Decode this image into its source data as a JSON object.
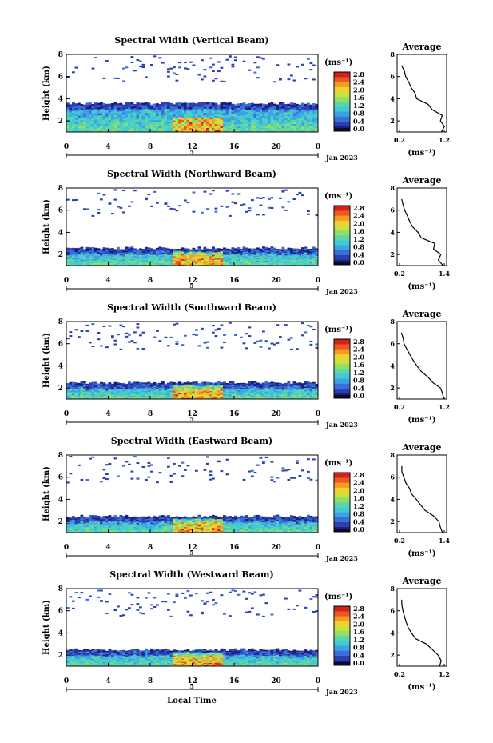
{
  "figure": {
    "xlabel": "Local Time",
    "date_label": "Jan 2023",
    "day_label": "5",
    "colorbar_unit": "(ms⁻¹)",
    "average_title": "Average",
    "average_unit": "(ms⁻¹)",
    "y_axis_label": "Height (km)",
    "colorbar_ticks": [
      "0.0",
      "0.4",
      "0.8",
      "1.2",
      "1.6",
      "2.0",
      "2.4",
      "2.8"
    ],
    "colormap": [
      "#1a1a80",
      "#2b3fb0",
      "#3a6fd8",
      "#3aa3e6",
      "#42c9d6",
      "#5cd6a6",
      "#8fdf6a",
      "#c9e23e",
      "#f1d12e",
      "#f59a25",
      "#ea5a1e",
      "#d4201a"
    ]
  },
  "chart_data": [
    {
      "type": "heatmap",
      "title": "Spectral Width (Vertical Beam)",
      "xlabel": "Local Time",
      "ylabel": "Height (km)",
      "x_ticks": [
        "0",
        "4",
        "8",
        "12",
        "16",
        "20",
        "0"
      ],
      "y_ticks": [
        "2",
        "4",
        "6",
        "8"
      ],
      "xlim": [
        0,
        24
      ],
      "ylim": [
        1,
        8
      ],
      "colorbar_range": [
        0,
        2.8
      ],
      "avg_xlim": [
        0.2,
        1.2
      ],
      "avg_x_ticks": [
        "0.2",
        "1.2"
      ],
      "low_layer_top_km": 3.6,
      "average_profile": {
        "height_km": [
          1.0,
          1.5,
          2.0,
          2.5,
          3.0,
          3.5,
          4.0,
          4.5,
          5.0,
          5.5,
          6.0,
          6.5,
          7.0
        ],
        "width": [
          1.15,
          1.2,
          1.1,
          1.15,
          0.95,
          0.85,
          0.6,
          0.55,
          0.45,
          0.4,
          0.35,
          0.3,
          0.25
        ]
      }
    },
    {
      "type": "heatmap",
      "title": "Spectral Width (Northward Beam)",
      "xlabel": "Local Time",
      "ylabel": "Height (km)",
      "x_ticks": [
        "0",
        "4",
        "8",
        "12",
        "16",
        "20",
        "0"
      ],
      "y_ticks": [
        "2",
        "4",
        "6",
        "8"
      ],
      "xlim": [
        0,
        24
      ],
      "ylim": [
        1,
        8
      ],
      "colorbar_range": [
        0,
        2.8
      ],
      "avg_xlim": [
        0.2,
        1.4
      ],
      "avg_x_ticks": [
        "0.2",
        "1.4"
      ],
      "low_layer_top_km": 2.6,
      "average_profile": {
        "height_km": [
          1.0,
          1.5,
          2.0,
          2.5,
          3.0,
          3.5,
          4.0,
          4.5,
          5.0,
          5.5,
          6.0,
          6.5,
          7.0
        ],
        "width": [
          1.35,
          1.25,
          1.3,
          1.1,
          1.15,
          0.8,
          0.7,
          0.55,
          0.45,
          0.4,
          0.32,
          0.28,
          0.25
        ]
      }
    },
    {
      "type": "heatmap",
      "title": "Spectral Width (Southward Beam)",
      "xlabel": "Local Time",
      "ylabel": "Height (km)",
      "x_ticks": [
        "0",
        "4",
        "8",
        "12",
        "16",
        "20",
        "0"
      ],
      "y_ticks": [
        "2",
        "4",
        "6",
        "8"
      ],
      "xlim": [
        0,
        24
      ],
      "ylim": [
        1,
        8
      ],
      "colorbar_range": [
        0,
        2.8
      ],
      "avg_xlim": [
        0.2,
        1.2
      ],
      "avg_x_ticks": [
        "0.2",
        "1.2"
      ],
      "low_layer_top_km": 2.5,
      "average_profile": {
        "height_km": [
          1.0,
          1.5,
          2.0,
          2.5,
          3.0,
          3.5,
          4.0,
          4.5,
          5.0,
          5.5,
          6.0,
          6.5,
          7.0
        ],
        "width": [
          1.2,
          1.15,
          1.1,
          0.95,
          0.85,
          0.7,
          0.6,
          0.5,
          0.42,
          0.38,
          0.3,
          0.27,
          0.25
        ]
      }
    },
    {
      "type": "heatmap",
      "title": "Spectral Width (Eastward Beam)",
      "xlabel": "Local Time",
      "ylabel": "Height (km)",
      "x_ticks": [
        "0",
        "4",
        "8",
        "12",
        "16",
        "20",
        "0"
      ],
      "y_ticks": [
        "2",
        "4",
        "6",
        "8"
      ],
      "xlim": [
        0,
        24
      ],
      "ylim": [
        1,
        8
      ],
      "colorbar_range": [
        0,
        2.8
      ],
      "avg_xlim": [
        0.2,
        1.4
      ],
      "avg_x_ticks": [
        "0.2",
        "1.4"
      ],
      "low_layer_top_km": 2.5,
      "average_profile": {
        "height_km": [
          1.0,
          1.5,
          2.0,
          2.5,
          3.0,
          3.5,
          4.0,
          4.5,
          5.0,
          5.5,
          6.0,
          6.5,
          7.0
        ],
        "width": [
          1.35,
          1.3,
          1.25,
          1.1,
          0.9,
          0.75,
          0.65,
          0.5,
          0.45,
          0.38,
          0.32,
          0.28,
          0.25
        ]
      }
    },
    {
      "type": "heatmap",
      "title": "Spectral Width (Westward Beam)",
      "xlabel": "Local Time",
      "ylabel": "Height (km)",
      "x_ticks": [
        "0",
        "4",
        "8",
        "12",
        "16",
        "20",
        "0"
      ],
      "y_ticks": [
        "2",
        "4",
        "6",
        "8"
      ],
      "xlim": [
        0,
        24
      ],
      "ylim": [
        1,
        8
      ],
      "colorbar_range": [
        0,
        2.8
      ],
      "avg_xlim": [
        0.2,
        1.2
      ],
      "avg_x_ticks": [
        "0.2",
        "1.2"
      ],
      "low_layer_top_km": 2.5,
      "average_profile": {
        "height_km": [
          1.0,
          1.5,
          2.0,
          2.5,
          3.0,
          3.5,
          4.0,
          4.5,
          5.0,
          5.5,
          6.0,
          6.5,
          7.0
        ],
        "width": [
          1.1,
          1.15,
          1.05,
          0.95,
          0.8,
          0.55,
          0.45,
          0.4,
          0.35,
          0.3,
          0.28,
          0.26,
          0.24
        ]
      }
    }
  ]
}
